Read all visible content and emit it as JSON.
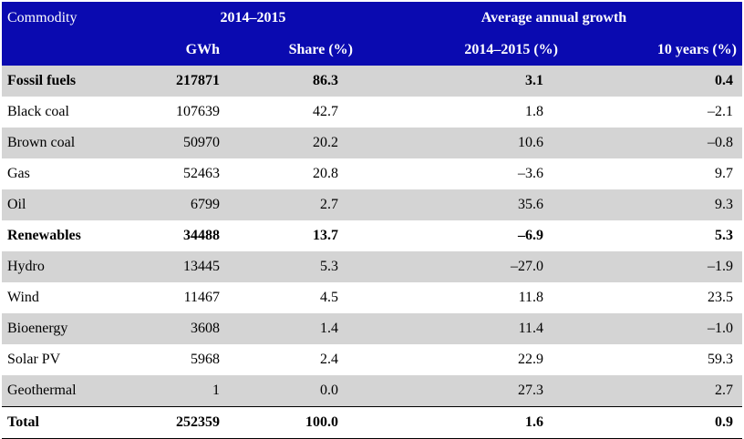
{
  "header": {
    "commodity": "Commodity",
    "group1": "2014–2015",
    "group2": "Average annual growth",
    "gwh": "GWh",
    "share": "Share (%)",
    "growth_year": "2014–2015 (%)",
    "growth_10y": "10 years (%)"
  },
  "rows": [
    {
      "label": "Fossil fuels",
      "gwh": "217871",
      "share": "86.3",
      "growth": "3.1",
      "ten": "0.4",
      "bold": true
    },
    {
      "label": "Black coal",
      "gwh": "107639",
      "share": "42.7",
      "growth": "1.8",
      "ten": "–2.1"
    },
    {
      "label": "Brown coal",
      "gwh": "50970",
      "share": "20.2",
      "growth": "10.6",
      "ten": "–0.8"
    },
    {
      "label": "Gas",
      "gwh": "52463",
      "share": "20.8",
      "growth": "–3.6",
      "ten": "9.7"
    },
    {
      "label": "Oil",
      "gwh": "6799",
      "share": "2.7",
      "growth": "35.6",
      "ten": "9.3"
    },
    {
      "label": "Renewables",
      "gwh": "34488",
      "share": "13.7",
      "growth": "–6.9",
      "ten": "5.3",
      "bold": true
    },
    {
      "label": "Hydro",
      "gwh": "13445",
      "share": "5.3",
      "growth": "–27.0",
      "ten": "–1.9"
    },
    {
      "label": "Wind",
      "gwh": "11467",
      "share": "4.5",
      "growth": "11.8",
      "ten": "23.5"
    },
    {
      "label": "Bioenergy",
      "gwh": "3608",
      "share": "1.4",
      "growth": "11.4",
      "ten": "–1.0"
    },
    {
      "label": "Solar PV",
      "gwh": "5968",
      "share": "2.4",
      "growth": "22.9",
      "ten": "59.3"
    },
    {
      "label": "Geothermal",
      "gwh": "1",
      "share": "0.0",
      "growth": "27.3",
      "ten": "2.7"
    }
  ],
  "total": {
    "label": "Total",
    "gwh": "252359",
    "share": "100.0",
    "growth": "1.6",
    "ten": "0.9"
  },
  "colors": {
    "header_bg": "#0a0ab0",
    "header_text": "#ffffff",
    "row_shade": "#d4d4d4"
  }
}
